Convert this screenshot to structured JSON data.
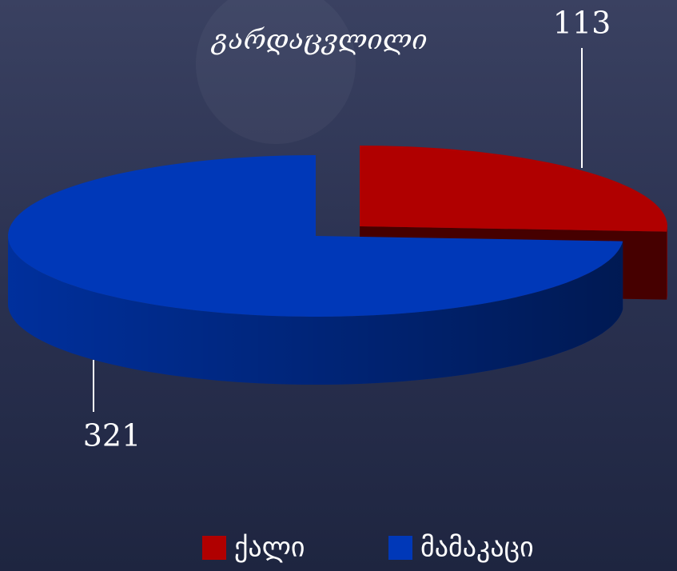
{
  "chart_data": {
    "type": "pie",
    "title": "გარდაცვლილი",
    "categories": [
      "ქალი",
      "მამაკაცი"
    ],
    "values": [
      113,
      321
    ],
    "colors": [
      "#b00000",
      "#0038b8"
    ]
  }
}
